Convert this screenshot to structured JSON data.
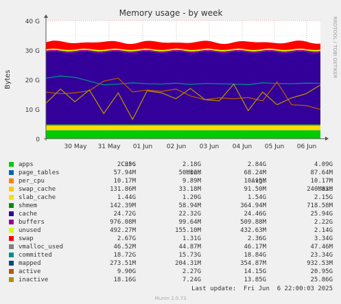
{
  "title": "Memory usage - by week",
  "side_label": "RRDTOOL / TOBI OETIKER",
  "ylabel": "Bytes",
  "y_ticks": [
    "0",
    "10 G",
    "20 G",
    "30 G",
    "40 G"
  ],
  "x_ticks": [
    "30 May",
    "31 May",
    "01 Jun",
    "02 Jun",
    "03 Jun",
    "04 Jun",
    "05 Jun",
    "06 Jun"
  ],
  "legend_header": {
    "cur": "Cur:",
    "min": "Min:",
    "avg": "Avg:",
    "max": "Max:"
  },
  "legend": [
    {
      "name": "apps",
      "color": "#00cc00",
      "cur": "2.35G",
      "min": "2.18G",
      "avg": "2.84G",
      "max": "4.09G"
    },
    {
      "name": "page_tables",
      "color": "#0066b3",
      "cur": "57.94M",
      "min": "50.02M",
      "avg": "68.24M",
      "max": "87.64M"
    },
    {
      "name": "per_cpu",
      "color": "#ff8000",
      "cur": "10.17M",
      "min": "9.89M",
      "avg": "10.15M",
      "max": "10.17M"
    },
    {
      "name": "swap_cache",
      "color": "#ffcc00",
      "cur": "131.86M",
      "min": "33.18M",
      "avg": "91.50M",
      "max": "240.83M"
    },
    {
      "name": "slab_cache",
      "color": "#ffdd00",
      "cur": "1.44G",
      "min": "1.20G",
      "avg": "1.54G",
      "max": "2.15G"
    },
    {
      "name": "shmem",
      "color": "#008f00",
      "cur": "142.39M",
      "min": "58.94M",
      "avg": "364.94M",
      "max": "718.58M"
    },
    {
      "name": "cache",
      "color": "#330099",
      "cur": "24.72G",
      "min": "22.32G",
      "avg": "24.46G",
      "max": "25.94G"
    },
    {
      "name": "buffers",
      "color": "#990099",
      "cur": "976.08M",
      "min": "99.64M",
      "avg": "509.88M",
      "max": "2.22G"
    },
    {
      "name": "unused",
      "color": "#ccff00",
      "cur": "492.27M",
      "min": "155.10M",
      "avg": "432.63M",
      "max": "2.14G"
    },
    {
      "name": "swap",
      "color": "#ff0000",
      "cur": "2.67G",
      "min": "1.31G",
      "avg": "2.36G",
      "max": "3.34G"
    },
    {
      "name": "vmalloc_used",
      "color": "#808080",
      "cur": "46.52M",
      "min": "44.87M",
      "avg": "46.17M",
      "max": "47.46M"
    },
    {
      "name": "committed",
      "color": "#008f8f",
      "cur": "18.72G",
      "min": "15.73G",
      "avg": "18.84G",
      "max": "23.34G"
    },
    {
      "name": "mapped",
      "color": "#00487d",
      "cur": "273.51M",
      "min": "204.31M",
      "avg": "354.87M",
      "max": "932.53M"
    },
    {
      "name": "active",
      "color": "#b35a00",
      "cur": "9.90G",
      "min": "2.27G",
      "avg": "14.15G",
      "max": "20.95G"
    },
    {
      "name": "inactive",
      "color": "#b38f00",
      "cur": "18.16G",
      "min": "7.24G",
      "avg": "13.85G",
      "max": "25.86G"
    }
  ],
  "last_update": "Last update:  Fri Jun  6 22:00:03 2025",
  "footer": "Munin 2.0.73",
  "chart_data": {
    "type": "area",
    "title": "Memory usage - by week",
    "ylabel": "Bytes",
    "ylim": [
      0,
      40
    ],
    "y_unit": "G",
    "x_range": [
      "29 May",
      "06 Jun"
    ],
    "grid": true,
    "stack_order": [
      "apps",
      "page_tables",
      "per_cpu",
      "swap_cache",
      "slab_cache",
      "shmem",
      "cache",
      "buffers",
      "unused",
      "swap"
    ],
    "stacked_approx_G": {
      "apps": 2.8,
      "page_tables": 0.07,
      "per_cpu": 0.01,
      "swap_cache": 0.09,
      "slab_cache": 1.5,
      "shmem": 0.36,
      "cache": 24.5,
      "buffers": 0.5,
      "unused": 0.43,
      "swap": 2.4
    },
    "lines": [
      {
        "name": "committed",
        "color": "#008f8f",
        "values": [
          20.5,
          21.2,
          20.8,
          19.5,
          18.2,
          18.5,
          18.9,
          18.6,
          18.5,
          18.8,
          18.4,
          18.7,
          18.6,
          18.5,
          18.3,
          18.9,
          18.7,
          18.6,
          18.8,
          18.72
        ]
      },
      {
        "name": "active",
        "color": "#b35a00",
        "values": [
          15.8,
          15.2,
          15.5,
          16.2,
          19.5,
          20.5,
          15.8,
          16.5,
          16.0,
          16.8,
          14.5,
          13.2,
          13.8,
          13.5,
          13.9,
          12.8,
          19.2,
          11.5,
          11.2,
          9.9
        ]
      },
      {
        "name": "inactive",
        "color": "#b38f00",
        "values": [
          12.0,
          16.8,
          12.5,
          16.5,
          8.5,
          15.5,
          6.5,
          16.2,
          15.5,
          13.5,
          17.0,
          13.2,
          12.8,
          18.5,
          9.5,
          15.8,
          11.5,
          13.8,
          15.2,
          18.16
        ]
      }
    ]
  }
}
